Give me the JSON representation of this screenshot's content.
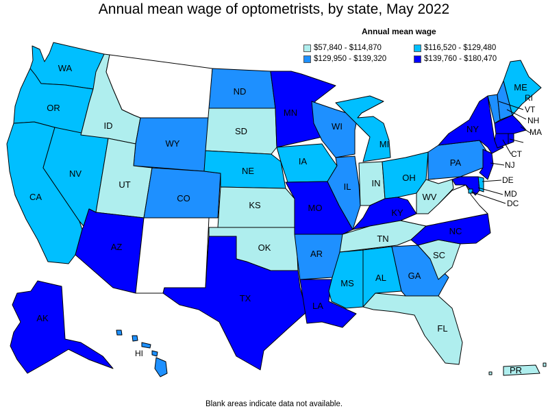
{
  "title": "Annual mean wage of optometrists, by state, May 2022",
  "legend": {
    "title": "Annual mean wage",
    "items": [
      {
        "label": "$57,840 - $114,870",
        "color": "#afeeee"
      },
      {
        "label": "$116,520 - $129,480",
        "color": "#00bfff"
      },
      {
        "label": "$129,950 - $139,320",
        "color": "#1e90ff"
      },
      {
        "label": "$139,760 - $180,470",
        "color": "#0000ff"
      }
    ]
  },
  "footnote": "Blank areas indicate data not available.",
  "colors": {
    "tier1": "#afeeee",
    "tier2": "#00bfff",
    "tier3": "#1e90ff",
    "tier4": "#0000ff",
    "no_data": "#ffffff"
  },
  "states": [
    {
      "abbr": "WA",
      "tier": 2
    },
    {
      "abbr": "OR",
      "tier": 2
    },
    {
      "abbr": "CA",
      "tier": 2
    },
    {
      "abbr": "NV",
      "tier": 2
    },
    {
      "abbr": "ID",
      "tier": 1
    },
    {
      "abbr": "MT",
      "tier": 0
    },
    {
      "abbr": "WY",
      "tier": 3
    },
    {
      "abbr": "UT",
      "tier": 1
    },
    {
      "abbr": "AZ",
      "tier": 4
    },
    {
      "abbr": "CO",
      "tier": 3
    },
    {
      "abbr": "NM",
      "tier": 0
    },
    {
      "abbr": "ND",
      "tier": 3
    },
    {
      "abbr": "SD",
      "tier": 1
    },
    {
      "abbr": "NE",
      "tier": 2
    },
    {
      "abbr": "KS",
      "tier": 1
    },
    {
      "abbr": "OK",
      "tier": 1
    },
    {
      "abbr": "TX",
      "tier": 4
    },
    {
      "abbr": "MN",
      "tier": 4
    },
    {
      "abbr": "IA",
      "tier": 2
    },
    {
      "abbr": "MO",
      "tier": 4
    },
    {
      "abbr": "AR",
      "tier": 3
    },
    {
      "abbr": "LA",
      "tier": 4
    },
    {
      "abbr": "WI",
      "tier": 3
    },
    {
      "abbr": "IL",
      "tier": 3
    },
    {
      "abbr": "MI",
      "tier": 2
    },
    {
      "abbr": "IN",
      "tier": 1
    },
    {
      "abbr": "OH",
      "tier": 2
    },
    {
      "abbr": "KY",
      "tier": 4
    },
    {
      "abbr": "TN",
      "tier": 1
    },
    {
      "abbr": "MS",
      "tier": 2
    },
    {
      "abbr": "AL",
      "tier": 2
    },
    {
      "abbr": "GA",
      "tier": 3
    },
    {
      "abbr": "FL",
      "tier": 1
    },
    {
      "abbr": "SC",
      "tier": 1
    },
    {
      "abbr": "NC",
      "tier": 4
    },
    {
      "abbr": "VA",
      "tier": 0
    },
    {
      "abbr": "WV",
      "tier": 1
    },
    {
      "abbr": "PA",
      "tier": 3
    },
    {
      "abbr": "NY",
      "tier": 4
    },
    {
      "abbr": "ME",
      "tier": 2
    },
    {
      "abbr": "VT",
      "tier": 3
    },
    {
      "abbr": "NH",
      "tier": 3
    },
    {
      "abbr": "MA",
      "tier": 4
    },
    {
      "abbr": "CT",
      "tier": 4
    },
    {
      "abbr": "RI",
      "tier": 4
    },
    {
      "abbr": "NJ",
      "tier": 4
    },
    {
      "abbr": "DE",
      "tier": 2
    },
    {
      "abbr": "MD",
      "tier": 4
    },
    {
      "abbr": "DC",
      "tier": 2
    },
    {
      "abbr": "AK",
      "tier": 4
    },
    {
      "abbr": "HI",
      "tier": 3
    },
    {
      "abbr": "PR",
      "tier": 1
    }
  ]
}
